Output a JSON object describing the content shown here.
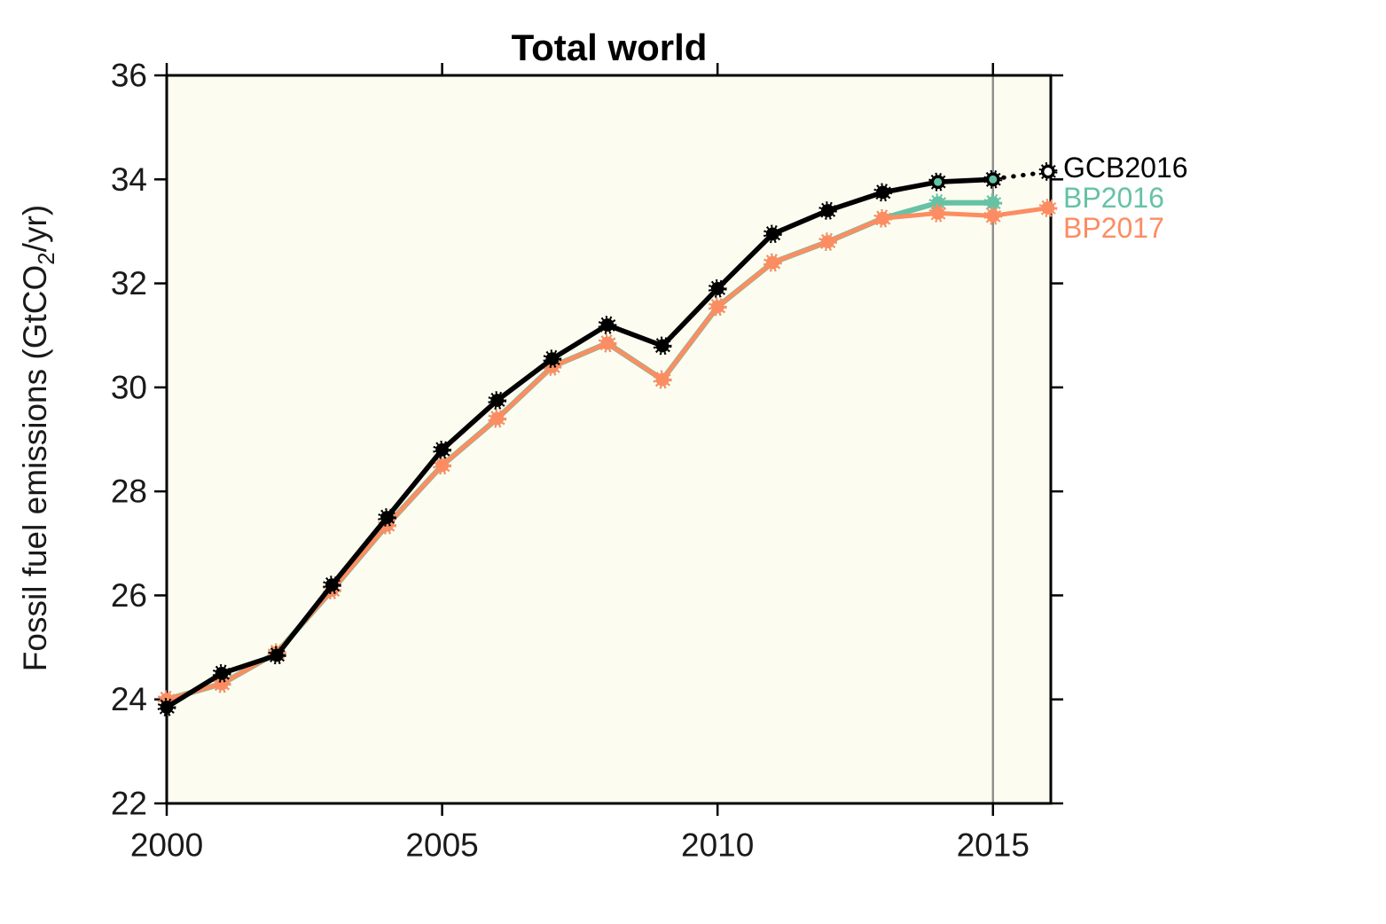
{
  "title": "Total world",
  "ylabel": {
    "prefix": "Fossil fuel emissions (GtCO",
    "sub": "2",
    "suffix": "/yr)"
  },
  "legend": [
    {
      "label": "GCB2016",
      "color": "#000000"
    },
    {
      "label": "BP2016",
      "color": "#66c2a5"
    },
    {
      "label": "BP2017",
      "color": "#fc8d62"
    }
  ],
  "chart_data": {
    "type": "line",
    "title": "Total world",
    "xlabel": "",
    "ylabel": "Fossil fuel emissions (GtCO2/yr)",
    "xlim": [
      2000,
      2016.05
    ],
    "ylim": [
      22,
      36
    ],
    "x_ticks": [
      2000,
      2005,
      2010,
      2015
    ],
    "y_ticks": [
      22,
      24,
      26,
      28,
      30,
      32,
      34,
      36
    ],
    "grid": false,
    "legend_position": "outside-right",
    "plot_bg_color": "#fdfcf0",
    "axis_color": "#000000",
    "tick_label_color": "#1a1a1a",
    "reference_line": {
      "x": 2015,
      "color": "#8e8e8e"
    },
    "series": [
      {
        "name": "BP2016",
        "color": "#66c2a5",
        "x": [
          2000,
          2001,
          2002,
          2003,
          2004,
          2005,
          2006,
          2007,
          2008,
          2009,
          2010,
          2011,
          2012,
          2013,
          2014,
          2015
        ],
        "values": [
          24.0,
          24.3,
          24.9,
          26.1,
          27.35,
          28.5,
          29.4,
          30.4,
          30.85,
          30.15,
          31.55,
          32.4,
          32.8,
          33.25,
          33.55,
          33.55
        ]
      },
      {
        "name": "BP2017",
        "color": "#fc8d62",
        "x": [
          2000,
          2001,
          2002,
          2003,
          2004,
          2005,
          2006,
          2007,
          2008,
          2009,
          2010,
          2011,
          2012,
          2013,
          2014,
          2015,
          2016
        ],
        "values": [
          24.0,
          24.3,
          24.9,
          26.1,
          27.35,
          28.5,
          29.4,
          30.4,
          30.85,
          30.15,
          31.55,
          32.4,
          32.8,
          33.25,
          33.35,
          33.3,
          33.45
        ]
      },
      {
        "name": "GCB2016",
        "color": "#000000",
        "x": [
          2000,
          2001,
          2002,
          2003,
          2004,
          2005,
          2006,
          2007,
          2008,
          2009,
          2010,
          2011,
          2012,
          2013,
          2014,
          2015
        ],
        "values": [
          23.85,
          24.5,
          24.85,
          26.2,
          27.5,
          28.8,
          29.75,
          30.55,
          31.2,
          30.8,
          31.9,
          32.95,
          33.4,
          33.75,
          33.95,
          34.0
        ],
        "highlight_marker_years": [
          2014,
          2015
        ],
        "highlight_marker_fill": "#66c2a5",
        "projection": {
          "x": 2016,
          "value": 34.15,
          "line_style": "dotted",
          "marker": "open-circle",
          "marker_fill": "#ffffff"
        }
      }
    ]
  }
}
